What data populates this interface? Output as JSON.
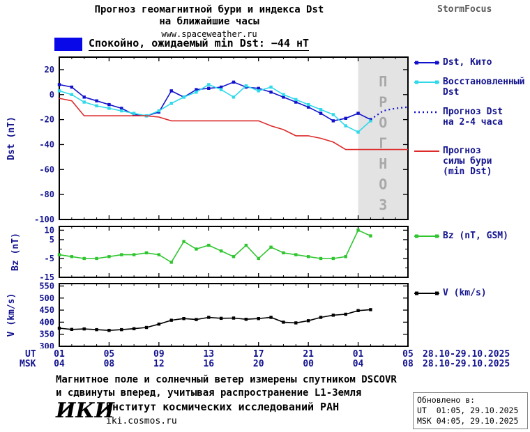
{
  "header": {
    "title_line1": "Прогноз геомагнитной бури и индекса Dst",
    "title_line2": "на ближайшие часы",
    "site": "www.spaceweather.ru",
    "brand": "StormFocus"
  },
  "status": {
    "label": "Спокойно, ожидаемый min Dst: −44 нТ",
    "swatch_color": "#0808e8"
  },
  "chart_data": [
    {
      "type": "line",
      "ylabel": "Dst (nT)",
      "ylim": [
        -100,
        30
      ],
      "yticks": [
        20,
        0,
        -20,
        -40,
        -60,
        -80,
        -100
      ],
      "xlim": [
        0,
        28
      ],
      "forecast_band": {
        "from": 24,
        "to": 28,
        "color": "#e3e3e3",
        "watermark": "ПРОГНОЗ",
        "watermark_color": "#a8a8a8"
      },
      "series": [
        {
          "name": "Dst, Кито",
          "color": "#1111cc",
          "style": "solid",
          "marker": true,
          "x": [
            0,
            1,
            2,
            3,
            4,
            5,
            6,
            7,
            8,
            9,
            10,
            11,
            12,
            13,
            14,
            15,
            16,
            17,
            18,
            19,
            20,
            21,
            22,
            23,
            24,
            25
          ],
          "values": [
            8,
            6,
            -2,
            -5,
            -8,
            -11,
            -16,
            -17,
            -14,
            3,
            -2,
            4,
            5,
            6,
            10,
            6,
            5,
            2,
            -2,
            -6,
            -10,
            -15,
            -21,
            -19,
            -15,
            -20
          ]
        },
        {
          "name": "Восстановленный Dst",
          "color": "#2fd9ea",
          "style": "solid",
          "marker": true,
          "x": [
            0,
            1,
            2,
            3,
            4,
            5,
            6,
            7,
            8,
            9,
            10,
            11,
            12,
            13,
            14,
            15,
            16,
            17,
            18,
            19,
            20,
            21,
            22,
            23,
            24,
            25
          ],
          "values": [
            3,
            0,
            -6,
            -9,
            -11,
            -13,
            -15,
            -17,
            -13,
            -7,
            -2,
            2,
            8,
            4,
            -2,
            7,
            3,
            6,
            0,
            -4,
            -8,
            -12,
            -16,
            -25,
            -30,
            -21
          ]
        },
        {
          "name": "Прогноз Dst на 2-4 часа",
          "color": "#1111cc",
          "style": "dotted",
          "marker": false,
          "x": [
            25,
            26,
            27,
            28
          ],
          "values": [
            -20,
            -13,
            -11,
            -10
          ]
        },
        {
          "name": "Прогноз силы бури (min Dst)",
          "color": "#dd2a2a",
          "style": "solid",
          "marker": false,
          "x": [
            0,
            1,
            2,
            3,
            4,
            5,
            6,
            7,
            8,
            9,
            10,
            11,
            12,
            13,
            14,
            15,
            16,
            17,
            18,
            19,
            20,
            21,
            22,
            23,
            24,
            25,
            26,
            27,
            28
          ],
          "values": [
            -3,
            -5,
            -17,
            -17,
            -17,
            -17,
            -17,
            -17,
            -18,
            -21,
            -21,
            -21,
            -21,
            -21,
            -21,
            -21,
            -21,
            -25,
            -28,
            -33,
            -33,
            -35,
            -38,
            -44,
            -44,
            -44,
            -44,
            -44,
            -44
          ]
        }
      ]
    },
    {
      "type": "line",
      "ylabel": "Bz (nT)",
      "ylim": [
        -15,
        12
      ],
      "yticks": [
        10,
        5,
        -5,
        -15
      ],
      "yticks_minor": [
        0,
        -10
      ],
      "xlim": [
        0,
        28
      ],
      "series": [
        {
          "name": "Bz (nT, GSM)",
          "color": "#2fc52f",
          "style": "solid",
          "marker": true,
          "x": [
            0,
            1,
            2,
            3,
            4,
            5,
            6,
            7,
            8,
            9,
            10,
            11,
            12,
            13,
            14,
            15,
            16,
            17,
            18,
            19,
            20,
            21,
            22,
            23,
            24,
            25
          ],
          "values": [
            -3,
            -4,
            -5,
            -5,
            -4,
            -3,
            -3,
            -2,
            -3,
            -7,
            4,
            0,
            2,
            -1,
            -4,
            2,
            -5,
            1,
            -2,
            -3,
            -4,
            -5,
            -5,
            -4,
            10,
            7
          ]
        }
      ]
    },
    {
      "type": "line",
      "ylabel": "V (km/s)",
      "ylim": [
        300,
        560
      ],
      "yticks": [
        550,
        500,
        450,
        400,
        350,
        300
      ],
      "xlim": [
        0,
        28
      ],
      "series": [
        {
          "name": "V (km/s)",
          "color": "#000000",
          "style": "solid",
          "marker": true,
          "x": [
            0,
            1,
            2,
            3,
            4,
            5,
            6,
            7,
            8,
            9,
            10,
            11,
            12,
            13,
            14,
            15,
            16,
            17,
            18,
            19,
            20,
            21,
            22,
            23,
            24,
            25
          ],
          "values": [
            375,
            370,
            372,
            369,
            366,
            369,
            373,
            378,
            392,
            408,
            415,
            411,
            420,
            416,
            417,
            412,
            415,
            420,
            400,
            397,
            406,
            420,
            429,
            433,
            448,
            452
          ]
        }
      ]
    }
  ],
  "xaxis": {
    "ut_label": "UT",
    "msk_label": "MSK",
    "tick_hours": [
      0,
      4,
      8,
      12,
      16,
      20,
      24,
      28
    ],
    "ut_ticks": [
      "01",
      "05",
      "09",
      "13",
      "17",
      "21",
      "01",
      "05"
    ],
    "msk_ticks": [
      "04",
      "08",
      "12",
      "16",
      "20",
      "00",
      "04",
      "08"
    ],
    "ut_suffix": "28.10-29.10.2025",
    "msk_suffix": "28.10-29.10.2025"
  },
  "legend_main": [
    {
      "label": "Dst, Кито",
      "color": "#1111cc",
      "style": "solid",
      "marker": true
    },
    {
      "label": "Восстановленный\nDst",
      "color": "#2fd9ea",
      "style": "solid",
      "marker": true
    },
    {
      "label": "Прогноз Dst\nна 2-4 часа",
      "color": "#1111cc",
      "style": "dotted",
      "marker": false
    },
    {
      "label": "Прогноз\nсилы бури\n(min Dst)",
      "color": "#dd2a2a",
      "style": "solid",
      "marker": false
    }
  ],
  "legend_bz": [
    {
      "label": "Bz (nT, GSM)",
      "color": "#2fc52f",
      "style": "solid",
      "marker": true
    }
  ],
  "legend_v": [
    {
      "label": "V (km/s)",
      "color": "#000000",
      "style": "solid",
      "marker": true
    }
  ],
  "footnote": {
    "line1": "Магнитное поле и солнечный ветер измерены спутником DSCOVR",
    "line2": "и сдвинуты вперед, учитывая распространение L1-Земля"
  },
  "footer": {
    "logo": "ИКИ",
    "institute": "Институт космических исследований РАН",
    "site": "iki.cosmos.ru",
    "updated_label": "Обновлено в:",
    "updated_ut": "UT  01:05, 29.10.2025",
    "updated_msk": "MSK 04:05, 29.10.2025"
  }
}
